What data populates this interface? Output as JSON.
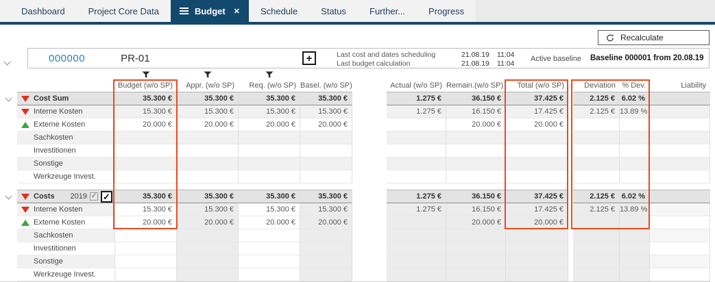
{
  "colors": {
    "navy_accent": "#14496e",
    "highlight_orange": "#e84b1c",
    "negative_red": "#e0301e",
    "positive_green": "#3aa63c",
    "project_id_blue": "#2b7cba"
  },
  "tabs": [
    {
      "label": "Dashboard",
      "active": false
    },
    {
      "label": "Project Core Data",
      "active": false
    },
    {
      "label": "Budget",
      "active": true,
      "has_menu_icon": true,
      "closable": true
    },
    {
      "label": "Schedule",
      "active": false
    },
    {
      "label": "Status",
      "active": false
    },
    {
      "label": "Further...",
      "active": false
    },
    {
      "label": "Progress",
      "active": false
    }
  ],
  "toolbar": {
    "recalculate_label": "Recalculate"
  },
  "project": {
    "id": "000000",
    "code": "PR-01",
    "add_button_label": "+",
    "info": [
      {
        "label": "Last cost and dates scheduling",
        "date": "21.08.19",
        "time": "11:04"
      },
      {
        "label": "Last budget calculation",
        "date": "21.08.19",
        "time": "11:04"
      }
    ],
    "active_baseline_label": "Active baseline",
    "baseline_value": "Baseline 000001 from 20.08.19"
  },
  "grid": {
    "columns": [
      {
        "key": "budget",
        "label": "Budget (w/o SP)",
        "filter": true
      },
      {
        "key": "appr",
        "label": "Appr. (w/o SP)",
        "filter": true
      },
      {
        "key": "req",
        "label": "Req. (w/o SP)",
        "filter": true
      },
      {
        "key": "basel",
        "label": "Basel. (w/o SP)",
        "filter": false
      },
      {
        "key": "actual",
        "label": "Actual (w/o SP)",
        "filter": false
      },
      {
        "key": "remain",
        "label": "Remain.(w/o SP)",
        "filter": false
      },
      {
        "key": "total",
        "label": "Total (w/o SP)",
        "filter": false
      },
      {
        "key": "deviation",
        "label": "Deviation",
        "filter": false
      },
      {
        "key": "pctdev",
        "label": "% Dev.",
        "filter": false
      },
      {
        "key": "liability",
        "label": "Liability",
        "filter": false
      }
    ],
    "sections": [
      {
        "header": {
          "label": "Cost Sum",
          "indicator": "red-down",
          "values": [
            "35.300 €",
            "35.300 €",
            "35.300 €",
            "35.300 €",
            "1.275 €",
            "36.150 €",
            "37.425 €",
            "2.125 €",
            "6.02 %",
            ""
          ]
        },
        "rows": [
          {
            "label": "Interne Kosten",
            "indicator": "red-down",
            "values": [
              "15.300 €",
              "15.300 €",
              "15.300 €",
              "15.300 €",
              "1.275 €",
              "16.150 €",
              "17.425 €",
              "2.125 €",
              "13.89 %",
              ""
            ]
          },
          {
            "label": "Externe Kosten",
            "indicator": "green-up",
            "values": [
              "20.000 €",
              "20.000 €",
              "20.000 €",
              "20.000 €",
              "",
              "20.000 €",
              "20.000 €",
              "",
              "",
              ""
            ]
          },
          {
            "label": "Sachkosten",
            "indicator": null,
            "values": [
              "",
              "",
              "",
              "",
              "",
              "",
              "",
              "",
              "",
              ""
            ]
          },
          {
            "label": "Investitionen",
            "indicator": null,
            "values": [
              "",
              "",
              "",
              "",
              "",
              "",
              "",
              "",
              "",
              ""
            ]
          },
          {
            "label": "Sonstige",
            "indicator": null,
            "values": [
              "",
              "",
              "",
              "",
              "",
              "",
              "",
              "",
              "",
              ""
            ]
          },
          {
            "label": "Werkzeuge Invest.",
            "indicator": null,
            "values": [
              "",
              "",
              "",
              "",
              "",
              "",
              "",
              "",
              "",
              ""
            ]
          }
        ]
      },
      {
        "header": {
          "label": "Costs",
          "year": "2019",
          "checkbox_small_checked": true,
          "checkbox_large_checked": true,
          "check_glyph": "✓",
          "indicator": "red-down",
          "values": [
            "35.300 €",
            "35.300 €",
            "35.300 €",
            "35.300 €",
            "1.275 €",
            "36.150 €",
            "37.425 €",
            "2.125 €",
            "6.02 %",
            ""
          ]
        },
        "rows": [
          {
            "label": "Interne Kosten",
            "indicator": "red-down",
            "values": [
              "15.300 €",
              "15.300 €",
              "15.300 €",
              "15.300 €",
              "1.275 €",
              "16.150 €",
              "17.425 €",
              "2.125 €",
              "13.89 %",
              ""
            ]
          },
          {
            "label": "Externe Kosten",
            "indicator": "green-up",
            "values": [
              "20.000 €",
              "20.000 €",
              "20.000 €",
              "20.000 €",
              "",
              "20.000 €",
              "20.000 €",
              "",
              "",
              ""
            ]
          },
          {
            "label": "Sachkosten",
            "indicator": null,
            "values": [
              "",
              "",
              "",
              "",
              "",
              "",
              "",
              "",
              "",
              ""
            ]
          },
          {
            "label": "Investitionen",
            "indicator": null,
            "values": [
              "",
              "",
              "",
              "",
              "",
              "",
              "",
              "",
              "",
              ""
            ]
          },
          {
            "label": "Sonstige",
            "indicator": null,
            "values": [
              "",
              "",
              "",
              "",
              "",
              "",
              "",
              "",
              "",
              ""
            ]
          },
          {
            "label": "Werkzeuge Invest.",
            "indicator": null,
            "values": [
              "",
              "",
              "",
              "",
              "",
              "",
              "",
              "",
              "",
              ""
            ]
          }
        ]
      }
    ]
  }
}
